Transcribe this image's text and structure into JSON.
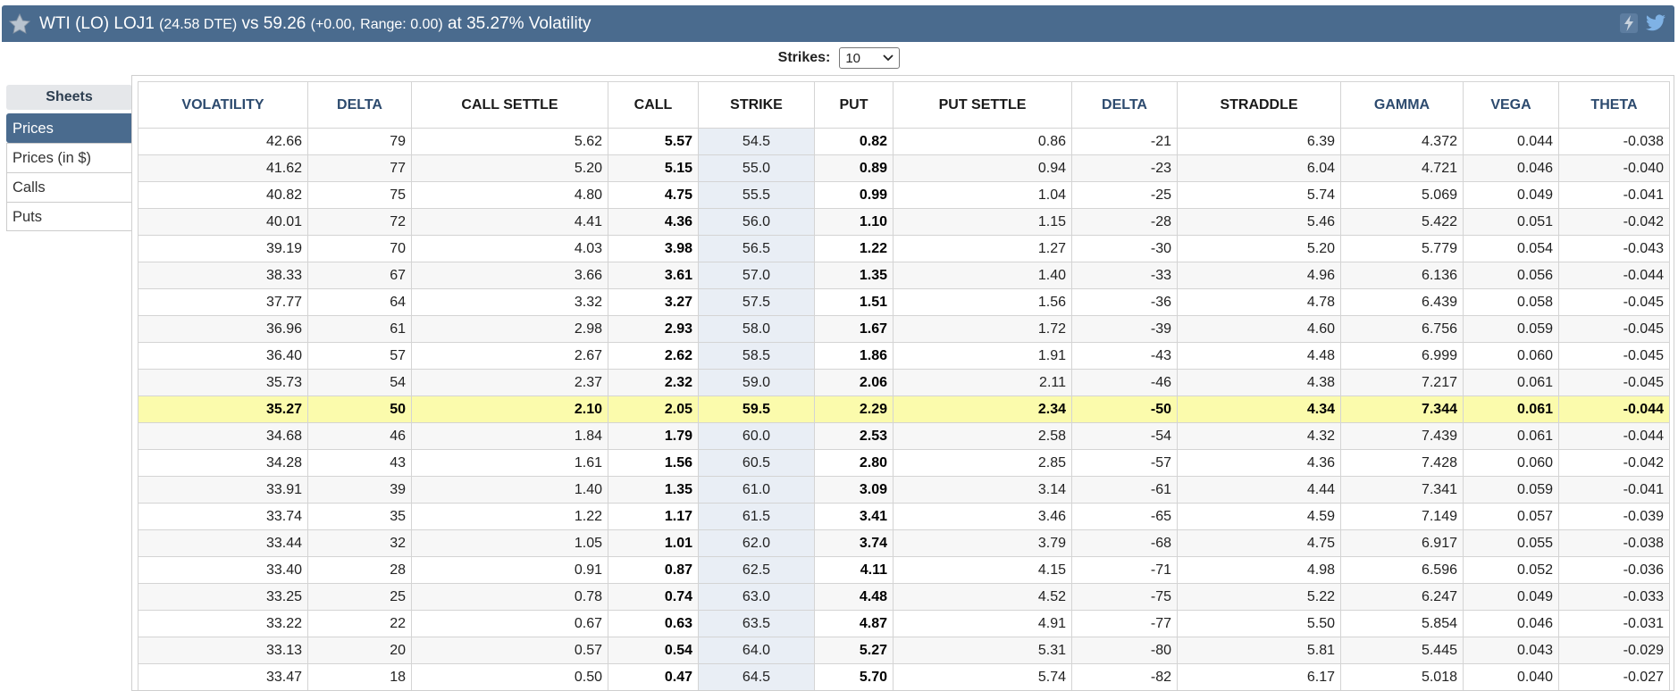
{
  "header": {
    "title_main": "WTI (LO) LOJ1",
    "dte": "(24.58 DTE)",
    "vs_label": "vs 59.26",
    "change": "(+0.00,",
    "range": "Range: 0.00)",
    "volatility_text": "at 35.27% Volatility",
    "icons": [
      "star-icon",
      "lightning-icon",
      "twitter-icon"
    ]
  },
  "strikes": {
    "label": "Strikes:",
    "value": "10"
  },
  "sidebar": {
    "heading": "Sheets",
    "items": [
      {
        "label": "Prices",
        "active": true
      },
      {
        "label": "Prices (in $)",
        "active": false
      },
      {
        "label": "Calls",
        "active": false
      },
      {
        "label": "Puts",
        "active": false
      }
    ]
  },
  "table": {
    "columns": [
      "VOLATILITY",
      "DELTA",
      "CALL SETTLE",
      "CALL",
      "STRIKE",
      "PUT",
      "PUT SETTLE",
      "DELTA",
      "STRADDLE",
      "GAMMA",
      "VEGA",
      "THETA"
    ],
    "atm_row_index": 10,
    "rows": [
      [
        "42.66",
        "79",
        "5.62",
        "5.57",
        "54.5",
        "0.82",
        "0.86",
        "-21",
        "6.39",
        "4.372",
        "0.044",
        "-0.038"
      ],
      [
        "41.62",
        "77",
        "5.20",
        "5.15",
        "55.0",
        "0.89",
        "0.94",
        "-23",
        "6.04",
        "4.721",
        "0.046",
        "-0.040"
      ],
      [
        "40.82",
        "75",
        "4.80",
        "4.75",
        "55.5",
        "0.99",
        "1.04",
        "-25",
        "5.74",
        "5.069",
        "0.049",
        "-0.041"
      ],
      [
        "40.01",
        "72",
        "4.41",
        "4.36",
        "56.0",
        "1.10",
        "1.15",
        "-28",
        "5.46",
        "5.422",
        "0.051",
        "-0.042"
      ],
      [
        "39.19",
        "70",
        "4.03",
        "3.98",
        "56.5",
        "1.22",
        "1.27",
        "-30",
        "5.20",
        "5.779",
        "0.054",
        "-0.043"
      ],
      [
        "38.33",
        "67",
        "3.66",
        "3.61",
        "57.0",
        "1.35",
        "1.40",
        "-33",
        "4.96",
        "6.136",
        "0.056",
        "-0.044"
      ],
      [
        "37.77",
        "64",
        "3.32",
        "3.27",
        "57.5",
        "1.51",
        "1.56",
        "-36",
        "4.78",
        "6.439",
        "0.058",
        "-0.045"
      ],
      [
        "36.96",
        "61",
        "2.98",
        "2.93",
        "58.0",
        "1.67",
        "1.72",
        "-39",
        "4.60",
        "6.756",
        "0.059",
        "-0.045"
      ],
      [
        "36.40",
        "57",
        "2.67",
        "2.62",
        "58.5",
        "1.86",
        "1.91",
        "-43",
        "4.48",
        "6.999",
        "0.060",
        "-0.045"
      ],
      [
        "35.73",
        "54",
        "2.37",
        "2.32",
        "59.0",
        "2.06",
        "2.11",
        "-46",
        "4.38",
        "7.217",
        "0.061",
        "-0.045"
      ],
      [
        "35.27",
        "50",
        "2.10",
        "2.05",
        "59.5",
        "2.29",
        "2.34",
        "-50",
        "4.34",
        "7.344",
        "0.061",
        "-0.044"
      ],
      [
        "34.68",
        "46",
        "1.84",
        "1.79",
        "60.0",
        "2.53",
        "2.58",
        "-54",
        "4.32",
        "7.439",
        "0.061",
        "-0.044"
      ],
      [
        "34.28",
        "43",
        "1.61",
        "1.56",
        "60.5",
        "2.80",
        "2.85",
        "-57",
        "4.36",
        "7.428",
        "0.060",
        "-0.042"
      ],
      [
        "33.91",
        "39",
        "1.40",
        "1.35",
        "61.0",
        "3.09",
        "3.14",
        "-61",
        "4.44",
        "7.341",
        "0.059",
        "-0.041"
      ],
      [
        "33.74",
        "35",
        "1.22",
        "1.17",
        "61.5",
        "3.41",
        "3.46",
        "-65",
        "4.59",
        "7.149",
        "0.057",
        "-0.039"
      ],
      [
        "33.44",
        "32",
        "1.05",
        "1.01",
        "62.0",
        "3.74",
        "3.79",
        "-68",
        "4.75",
        "6.917",
        "0.055",
        "-0.038"
      ],
      [
        "33.40",
        "28",
        "0.91",
        "0.87",
        "62.5",
        "4.11",
        "4.15",
        "-71",
        "4.98",
        "6.596",
        "0.052",
        "-0.036"
      ],
      [
        "33.25",
        "25",
        "0.78",
        "0.74",
        "63.0",
        "4.48",
        "4.52",
        "-75",
        "5.22",
        "6.247",
        "0.049",
        "-0.033"
      ],
      [
        "33.22",
        "22",
        "0.67",
        "0.63",
        "63.5",
        "4.87",
        "4.91",
        "-77",
        "5.50",
        "5.854",
        "0.046",
        "-0.031"
      ],
      [
        "33.13",
        "20",
        "0.57",
        "0.54",
        "64.0",
        "5.27",
        "5.31",
        "-80",
        "5.81",
        "5.445",
        "0.043",
        "-0.029"
      ],
      [
        "33.47",
        "18",
        "0.50",
        "0.47",
        "64.5",
        "5.70",
        "5.74",
        "-82",
        "6.17",
        "5.018",
        "0.040",
        "-0.027"
      ]
    ]
  },
  "colors": {
    "header_bg": "#4a6b8e",
    "active_tab_bg": "#4a6b8e",
    "atm_highlight": "#fbfbac",
    "strike_column_bg": "#e9eef5",
    "header_blue_text": "#2c4a6e"
  }
}
